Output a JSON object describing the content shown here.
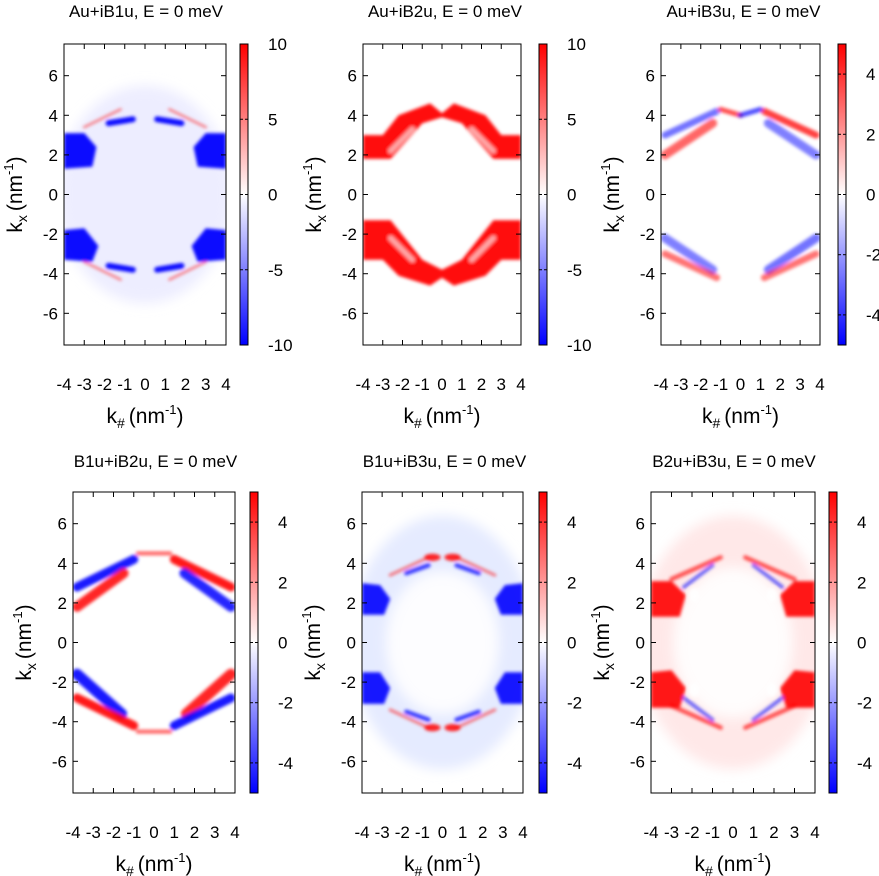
{
  "chart_data": {
    "type": "heatmap",
    "x_tick_labels": [
      "-4",
      "-3",
      "-2",
      "-1",
      "0",
      "1",
      "2",
      "3",
      "4"
    ],
    "y_tick_labels": [
      "6",
      "4",
      "2",
      "0",
      "-2",
      "-4",
      "-6"
    ],
    "y_ticks": [
      6,
      4,
      2,
      0,
      -2,
      -4,
      -6
    ],
    "xlim": [
      -4,
      4
    ],
    "ylim": [
      -7.6,
      7.6
    ],
    "xlabel_main": "k",
    "xlabel_sub": "#",
    "xlabel_unit": "(nm",
    "xlabel_exp": "-1",
    "xlabel_close": ")",
    "ylabel_main": "k",
    "ylabel_sub": "x",
    "ylabel_unit": "(nm",
    "ylabel_exp": "-1",
    "ylabel_close": ")",
    "colormap": {
      "low": "#0000ff",
      "mid": "#ffffff",
      "high": "#ff0000"
    },
    "panels": [
      {
        "title": "Au+iB1u, E = 0 meV",
        "clim": [
          -10,
          10
        ],
        "cb_ticks": [
          10,
          5,
          0,
          -5,
          -10
        ],
        "cb_tick_labels": [
          "10",
          "5",
          "0",
          "-5",
          "-10"
        ],
        "pattern": "b1u"
      },
      {
        "title": "Au+iB2u, E = 0 meV",
        "clim": [
          -10,
          10
        ],
        "cb_ticks": [
          10,
          5,
          0,
          -5,
          -10
        ],
        "cb_tick_labels": [
          "10",
          "5",
          "0",
          "-5",
          "-10"
        ],
        "pattern": "b2u"
      },
      {
        "title": "Au+iB3u, E = 0 meV",
        "clim": [
          -5,
          5
        ],
        "cb_ticks": [
          4,
          2,
          0,
          -2,
          -4
        ],
        "cb_tick_labels": [
          "4",
          "2",
          "0",
          "-2",
          "-4"
        ],
        "pattern": "b3u"
      },
      {
        "title": "B1u+iB2u, E = 0 meV",
        "clim": [
          -5,
          5
        ],
        "cb_ticks": [
          4,
          2,
          0,
          -2,
          -4
        ],
        "cb_tick_labels": [
          "4",
          "2",
          "0",
          "-2",
          "-4"
        ],
        "pattern": "b1b2"
      },
      {
        "title": "B1u+iB3u, E = 0 meV",
        "clim": [
          -5,
          5
        ],
        "cb_ticks": [
          4,
          2,
          0,
          -2,
          -4
        ],
        "cb_tick_labels": [
          "4",
          "2",
          "0",
          "-2",
          "-4"
        ],
        "pattern": "b1b3"
      },
      {
        "title": "B2u+iB3u, E = 0 meV",
        "clim": [
          -5,
          5
        ],
        "cb_ticks": [
          4,
          2,
          0,
          -2,
          -4
        ],
        "cb_tick_labels": [
          "4",
          "2",
          "0",
          "-2",
          "-4"
        ],
        "pattern": "b2b3"
      }
    ]
  }
}
